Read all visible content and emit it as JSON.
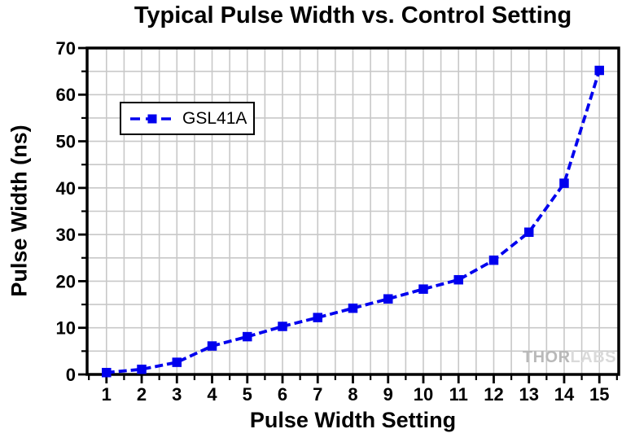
{
  "page": {
    "watermark": {
      "part1": "THOR",
      "part2": "LABS"
    }
  },
  "chart_data": {
    "type": "line",
    "title": "Typical Pulse Width vs. Control Setting",
    "xlabel": "Pulse Width Setting",
    "ylabel": "Pulse Width (ns)",
    "series": [
      {
        "name": "GSL41A",
        "x": [
          1,
          2,
          3,
          4,
          5,
          6,
          7,
          8,
          9,
          10,
          11,
          12,
          13,
          14,
          15
        ],
        "values": [
          0.4,
          1.1,
          2.6,
          6.1,
          8.1,
          10.3,
          12.2,
          14.2,
          16.2,
          18.3,
          20.3,
          24.5,
          30.5,
          41.0,
          65.2
        ],
        "color": "#0000EE",
        "marker": "square",
        "line_style": "dashed"
      }
    ],
    "xlim": [
      0.45,
      15.55
    ],
    "ylim": [
      0,
      70
    ],
    "x_ticks_major": [
      1,
      2,
      3,
      4,
      5,
      6,
      7,
      8,
      9,
      10,
      11,
      12,
      13,
      14,
      15
    ],
    "x_tick_minor_step": 0.5,
    "y_ticks_major": [
      0,
      10,
      20,
      30,
      40,
      50,
      60,
      70
    ],
    "y_tick_minor_step": 5,
    "grid": {
      "show": true,
      "color": "#c8c8c8",
      "x_start": 0.5,
      "x_end": 15.5,
      "x_step": 0.5,
      "y_start": 5,
      "y_end": 65,
      "y_step": 5
    },
    "legend": {
      "position": "upper-left",
      "entries": [
        "GSL41A"
      ]
    },
    "axis_color": "#000000",
    "background": "#ffffff"
  }
}
